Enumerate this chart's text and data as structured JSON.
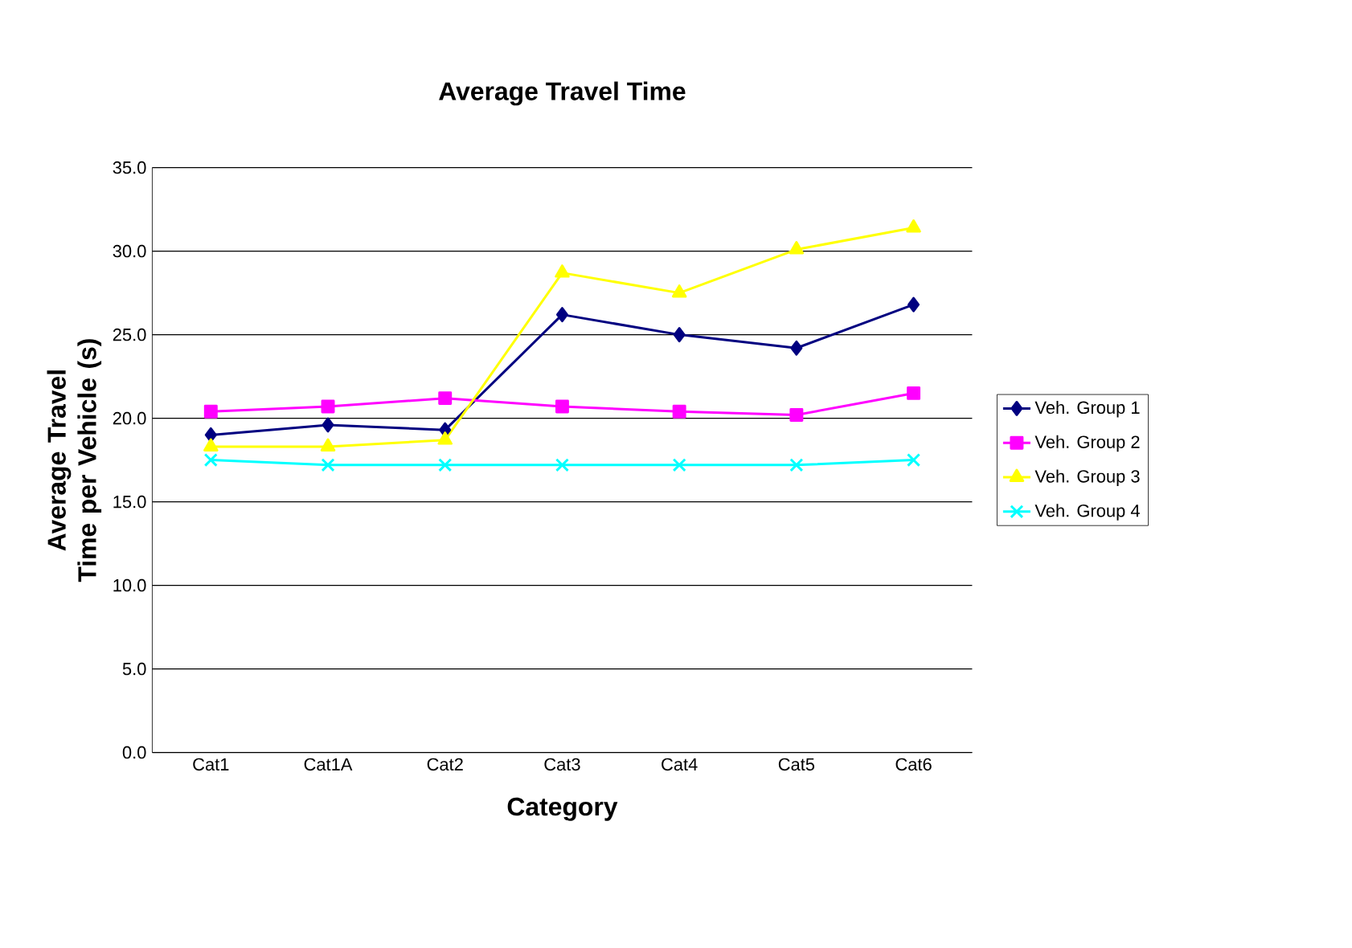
{
  "chart_data": {
    "type": "line",
    "title": "Average Travel Time",
    "xlabel": "Category",
    "ylabel": "Average Travel Time per Vehicle (s)",
    "categories": [
      "Cat1",
      "Cat1A",
      "Cat2",
      "Cat3",
      "Cat4",
      "Cat5",
      "Cat6"
    ],
    "series": [
      {
        "name": "Veh. Group 1",
        "color": "#000080",
        "marker": "diamond",
        "values": [
          19.0,
          19.6,
          19.3,
          26.2,
          25.0,
          24.2,
          26.8
        ]
      },
      {
        "name": "Veh. Group 2",
        "color": "#ff00ff",
        "marker": "square",
        "values": [
          20.4,
          20.7,
          21.2,
          20.7,
          20.4,
          20.2,
          21.5
        ]
      },
      {
        "name": "Veh. Group 3",
        "color": "#ffff00",
        "marker": "triangle",
        "values": [
          18.3,
          18.3,
          18.7,
          28.7,
          27.5,
          30.1,
          31.4
        ]
      },
      {
        "name": "Veh. Group 4",
        "color": "#00ffff",
        "marker": "cross",
        "values": [
          17.5,
          17.2,
          17.2,
          17.2,
          17.2,
          17.2,
          17.5
        ]
      }
    ],
    "ylim": [
      0,
      35
    ],
    "yticks": [
      {
        "value": 0,
        "label": "0.0"
      },
      {
        "value": 5,
        "label": "5.0"
      },
      {
        "value": 10,
        "label": "10.0"
      },
      {
        "value": 15,
        "label": "15.0"
      },
      {
        "value": 20,
        "label": "20.0"
      },
      {
        "value": 25,
        "label": "25.0"
      },
      {
        "value": 30,
        "label": "30.0"
      },
      {
        "value": 35,
        "label": "35.0"
      }
    ],
    "grid": "y",
    "legend": "right"
  }
}
